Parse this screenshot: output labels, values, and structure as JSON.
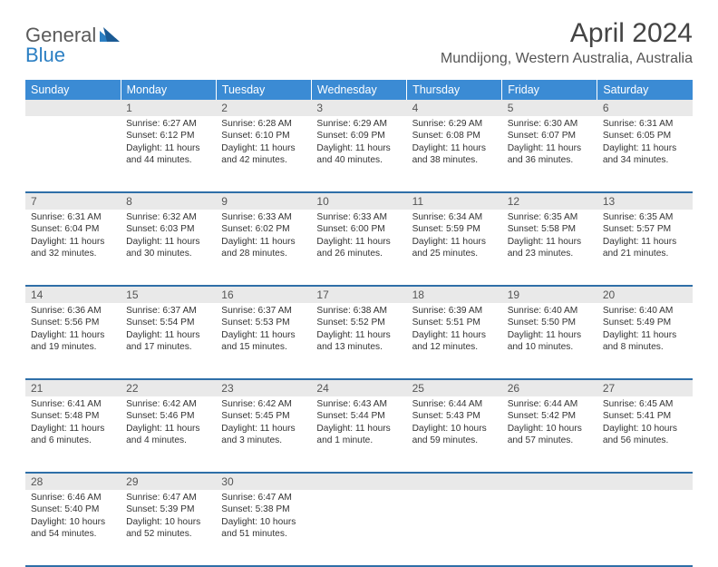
{
  "brand": {
    "part1": "General",
    "part2": "Blue"
  },
  "title": "April 2024",
  "location": "Mundijong, Western Australia, Australia",
  "colors": {
    "header_bg": "#3b8bd4",
    "header_text": "#ffffff",
    "daynum_bg": "#e9e9e9",
    "body_text": "#333333",
    "rule": "#2f6fa8",
    "logo_gray": "#5a5a5a",
    "logo_blue": "#2b7fc3"
  },
  "day_headers": [
    "Sunday",
    "Monday",
    "Tuesday",
    "Wednesday",
    "Thursday",
    "Friday",
    "Saturday"
  ],
  "weeks": [
    [
      {
        "num": "",
        "lines": []
      },
      {
        "num": "1",
        "lines": [
          "Sunrise: 6:27 AM",
          "Sunset: 6:12 PM",
          "Daylight: 11 hours",
          "and 44 minutes."
        ]
      },
      {
        "num": "2",
        "lines": [
          "Sunrise: 6:28 AM",
          "Sunset: 6:10 PM",
          "Daylight: 11 hours",
          "and 42 minutes."
        ]
      },
      {
        "num": "3",
        "lines": [
          "Sunrise: 6:29 AM",
          "Sunset: 6:09 PM",
          "Daylight: 11 hours",
          "and 40 minutes."
        ]
      },
      {
        "num": "4",
        "lines": [
          "Sunrise: 6:29 AM",
          "Sunset: 6:08 PM",
          "Daylight: 11 hours",
          "and 38 minutes."
        ]
      },
      {
        "num": "5",
        "lines": [
          "Sunrise: 6:30 AM",
          "Sunset: 6:07 PM",
          "Daylight: 11 hours",
          "and 36 minutes."
        ]
      },
      {
        "num": "6",
        "lines": [
          "Sunrise: 6:31 AM",
          "Sunset: 6:05 PM",
          "Daylight: 11 hours",
          "and 34 minutes."
        ]
      }
    ],
    [
      {
        "num": "7",
        "lines": [
          "Sunrise: 6:31 AM",
          "Sunset: 6:04 PM",
          "Daylight: 11 hours",
          "and 32 minutes."
        ]
      },
      {
        "num": "8",
        "lines": [
          "Sunrise: 6:32 AM",
          "Sunset: 6:03 PM",
          "Daylight: 11 hours",
          "and 30 minutes."
        ]
      },
      {
        "num": "9",
        "lines": [
          "Sunrise: 6:33 AM",
          "Sunset: 6:02 PM",
          "Daylight: 11 hours",
          "and 28 minutes."
        ]
      },
      {
        "num": "10",
        "lines": [
          "Sunrise: 6:33 AM",
          "Sunset: 6:00 PM",
          "Daylight: 11 hours",
          "and 26 minutes."
        ]
      },
      {
        "num": "11",
        "lines": [
          "Sunrise: 6:34 AM",
          "Sunset: 5:59 PM",
          "Daylight: 11 hours",
          "and 25 minutes."
        ]
      },
      {
        "num": "12",
        "lines": [
          "Sunrise: 6:35 AM",
          "Sunset: 5:58 PM",
          "Daylight: 11 hours",
          "and 23 minutes."
        ]
      },
      {
        "num": "13",
        "lines": [
          "Sunrise: 6:35 AM",
          "Sunset: 5:57 PM",
          "Daylight: 11 hours",
          "and 21 minutes."
        ]
      }
    ],
    [
      {
        "num": "14",
        "lines": [
          "Sunrise: 6:36 AM",
          "Sunset: 5:56 PM",
          "Daylight: 11 hours",
          "and 19 minutes."
        ]
      },
      {
        "num": "15",
        "lines": [
          "Sunrise: 6:37 AM",
          "Sunset: 5:54 PM",
          "Daylight: 11 hours",
          "and 17 minutes."
        ]
      },
      {
        "num": "16",
        "lines": [
          "Sunrise: 6:37 AM",
          "Sunset: 5:53 PM",
          "Daylight: 11 hours",
          "and 15 minutes."
        ]
      },
      {
        "num": "17",
        "lines": [
          "Sunrise: 6:38 AM",
          "Sunset: 5:52 PM",
          "Daylight: 11 hours",
          "and 13 minutes."
        ]
      },
      {
        "num": "18",
        "lines": [
          "Sunrise: 6:39 AM",
          "Sunset: 5:51 PM",
          "Daylight: 11 hours",
          "and 12 minutes."
        ]
      },
      {
        "num": "19",
        "lines": [
          "Sunrise: 6:40 AM",
          "Sunset: 5:50 PM",
          "Daylight: 11 hours",
          "and 10 minutes."
        ]
      },
      {
        "num": "20",
        "lines": [
          "Sunrise: 6:40 AM",
          "Sunset: 5:49 PM",
          "Daylight: 11 hours",
          "and 8 minutes."
        ]
      }
    ],
    [
      {
        "num": "21",
        "lines": [
          "Sunrise: 6:41 AM",
          "Sunset: 5:48 PM",
          "Daylight: 11 hours",
          "and 6 minutes."
        ]
      },
      {
        "num": "22",
        "lines": [
          "Sunrise: 6:42 AM",
          "Sunset: 5:46 PM",
          "Daylight: 11 hours",
          "and 4 minutes."
        ]
      },
      {
        "num": "23",
        "lines": [
          "Sunrise: 6:42 AM",
          "Sunset: 5:45 PM",
          "Daylight: 11 hours",
          "and 3 minutes."
        ]
      },
      {
        "num": "24",
        "lines": [
          "Sunrise: 6:43 AM",
          "Sunset: 5:44 PM",
          "Daylight: 11 hours",
          "and 1 minute."
        ]
      },
      {
        "num": "25",
        "lines": [
          "Sunrise: 6:44 AM",
          "Sunset: 5:43 PM",
          "Daylight: 10 hours",
          "and 59 minutes."
        ]
      },
      {
        "num": "26",
        "lines": [
          "Sunrise: 6:44 AM",
          "Sunset: 5:42 PM",
          "Daylight: 10 hours",
          "and 57 minutes."
        ]
      },
      {
        "num": "27",
        "lines": [
          "Sunrise: 6:45 AM",
          "Sunset: 5:41 PM",
          "Daylight: 10 hours",
          "and 56 minutes."
        ]
      }
    ],
    [
      {
        "num": "28",
        "lines": [
          "Sunrise: 6:46 AM",
          "Sunset: 5:40 PM",
          "Daylight: 10 hours",
          "and 54 minutes."
        ]
      },
      {
        "num": "29",
        "lines": [
          "Sunrise: 6:47 AM",
          "Sunset: 5:39 PM",
          "Daylight: 10 hours",
          "and 52 minutes."
        ]
      },
      {
        "num": "30",
        "lines": [
          "Sunrise: 6:47 AM",
          "Sunset: 5:38 PM",
          "Daylight: 10 hours",
          "and 51 minutes."
        ]
      },
      {
        "num": "",
        "lines": []
      },
      {
        "num": "",
        "lines": []
      },
      {
        "num": "",
        "lines": []
      },
      {
        "num": "",
        "lines": []
      }
    ]
  ]
}
